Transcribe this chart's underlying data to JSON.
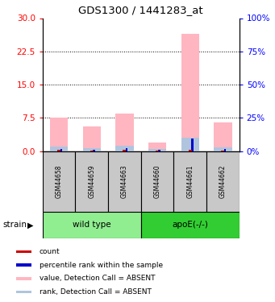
{
  "title": "GDS1300 / 1441283_at",
  "samples": [
    "GSM44658",
    "GSM44659",
    "GSM44663",
    "GSM44660",
    "GSM44661",
    "GSM44662"
  ],
  "value_absent": [
    7.5,
    5.5,
    8.5,
    2.0,
    26.5,
    6.5
  ],
  "rank_absent": [
    1.0,
    0.7,
    1.2,
    0.4,
    3.0,
    0.9
  ],
  "count_val": [
    0.2,
    0.15,
    0.25,
    0.1,
    0.35,
    0.15
  ],
  "percentile_val": [
    0.4,
    0.3,
    0.6,
    0.25,
    2.8,
    0.5
  ],
  "ylim_left": [
    0,
    30
  ],
  "ylim_right": [
    0,
    100
  ],
  "yticks_left": [
    0,
    7.5,
    15,
    22.5,
    30
  ],
  "yticks_right": [
    0,
    25,
    50,
    75,
    100
  ],
  "color_value_absent": "#ffb6c1",
  "color_rank_absent": "#b0c4de",
  "color_count": "#cc0000",
  "color_percentile": "#0000cc",
  "wt_color": "#90ee90",
  "apoe_color": "#32cd32",
  "legend_items": [
    {
      "label": "count",
      "color": "#cc0000"
    },
    {
      "label": "percentile rank within the sample",
      "color": "#0000cc"
    },
    {
      "label": "value, Detection Call = ABSENT",
      "color": "#ffb6c1"
    },
    {
      "label": "rank, Detection Call = ABSENT",
      "color": "#b0c4de"
    }
  ]
}
